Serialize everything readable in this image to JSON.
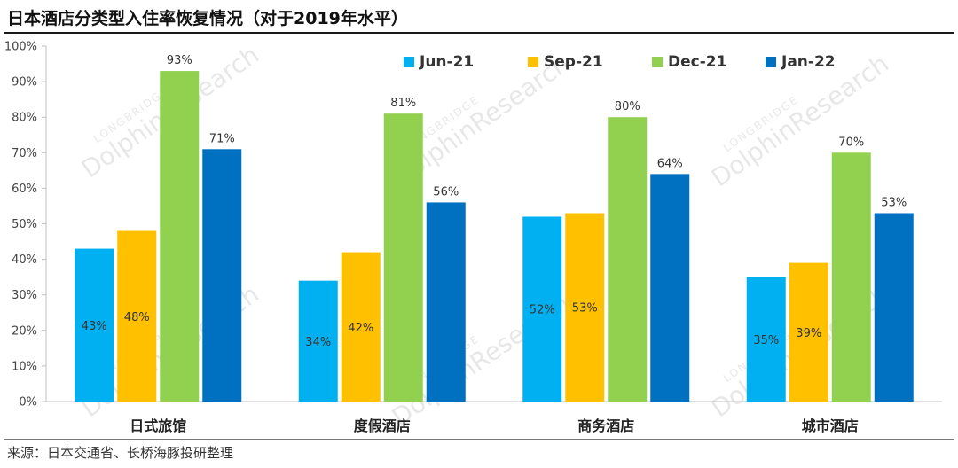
{
  "header": {
    "title": "日本酒店分类型入住率恢复情况（对于2019年水平）"
  },
  "footer": {
    "source": "来源：日本交通省、长桥海豚投研整理"
  },
  "watermark": {
    "brand_small": "LONGBRIDGE",
    "brand_large": "DolphinResearch"
  },
  "colors": {
    "Jun-21": "#00b0f0",
    "Sep-21": "#ffc000",
    "Dec-21": "#92d050",
    "Jan-22": "#0070c0"
  },
  "chart_data": {
    "type": "bar",
    "title": "日本酒店分类型入住率恢复情况（对于2019年水平）",
    "categories": [
      "日式旅馆",
      "度假酒店",
      "商务酒店",
      "城市酒店"
    ],
    "series": [
      {
        "name": "Jun-21",
        "values": [
          43,
          34,
          52,
          35
        ],
        "labels": [
          "43%",
          "34%",
          "52%",
          "35%"
        ]
      },
      {
        "name": "Sep-21",
        "values": [
          48,
          42,
          53,
          39
        ],
        "labels": [
          "48%",
          "42%",
          "53%",
          "39%"
        ]
      },
      {
        "name": "Dec-21",
        "values": [
          93,
          81,
          80,
          70
        ],
        "labels": [
          "93%",
          "81%",
          "80%",
          "70%"
        ]
      },
      {
        "name": "Jan-22",
        "values": [
          71,
          56,
          64,
          53
        ],
        "labels": [
          "71%",
          "56%",
          "64%",
          "53%"
        ]
      }
    ],
    "yticks": [
      "0%",
      "10%",
      "20%",
      "30%",
      "40%",
      "50%",
      "60%",
      "70%",
      "80%",
      "90%",
      "100%"
    ],
    "ylim": [
      0,
      100
    ],
    "grid": false,
    "legend": "top-right"
  }
}
